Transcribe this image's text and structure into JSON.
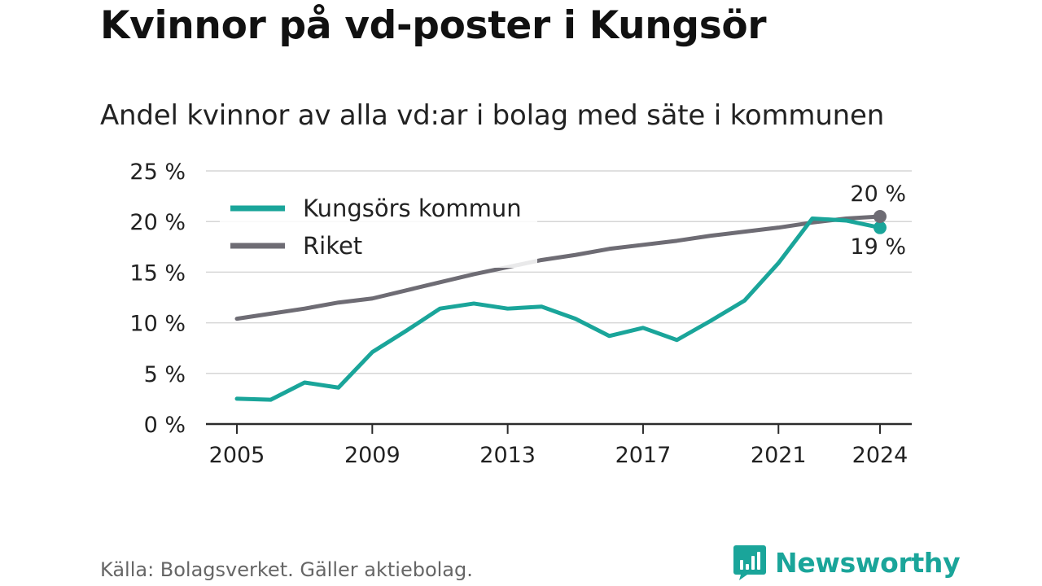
{
  "title": "Kvinnor på vd-poster i Kungsör",
  "subtitle": "Andel kvinnor av alla vd:ar i bolag med säte i kommunen",
  "source": "Källa: Bolagsverket. Gäller aktiebolag.",
  "brand": {
    "name": "Newsworthy",
    "icon": "newsworthy-logo-icon",
    "color": "#1aa59a"
  },
  "chart_data": {
    "type": "line",
    "x": [
      2005,
      2006,
      2007,
      2008,
      2009,
      2010,
      2011,
      2012,
      2013,
      2014,
      2015,
      2016,
      2017,
      2018,
      2019,
      2020,
      2021,
      2022,
      2023,
      2024
    ],
    "xticks": [
      2005,
      2009,
      2013,
      2017,
      2021,
      2024
    ],
    "xtick_labels": [
      "2005",
      "2009",
      "2013",
      "2017",
      "2021",
      "2024"
    ],
    "yticks": [
      0,
      5,
      10,
      15,
      20,
      25
    ],
    "ytick_labels": [
      "0 %",
      "5 %",
      "10 %",
      "15 %",
      "20 %",
      "25 %"
    ],
    "ylim": [
      0,
      25
    ],
    "grid": true,
    "legend_position": "top-left",
    "series": [
      {
        "name": "Kungsörs kommun",
        "color": "#1aa59a",
        "values": [
          2.5,
          2.4,
          4.1,
          3.6,
          7.1,
          9.2,
          11.4,
          11.9,
          11.4,
          11.6,
          10.4,
          8.7,
          9.5,
          8.3,
          10.2,
          12.2,
          15.9,
          20.3,
          20.1,
          19.4
        ],
        "end_label": "19 %"
      },
      {
        "name": "Riket",
        "color": "#6e6c74",
        "values": [
          10.4,
          10.9,
          11.4,
          12.0,
          12.4,
          13.2,
          14.0,
          14.8,
          15.5,
          16.2,
          16.7,
          17.3,
          17.7,
          18.1,
          18.6,
          19.0,
          19.4,
          19.9,
          20.3,
          20.5
        ],
        "end_label": "20 %"
      }
    ]
  }
}
